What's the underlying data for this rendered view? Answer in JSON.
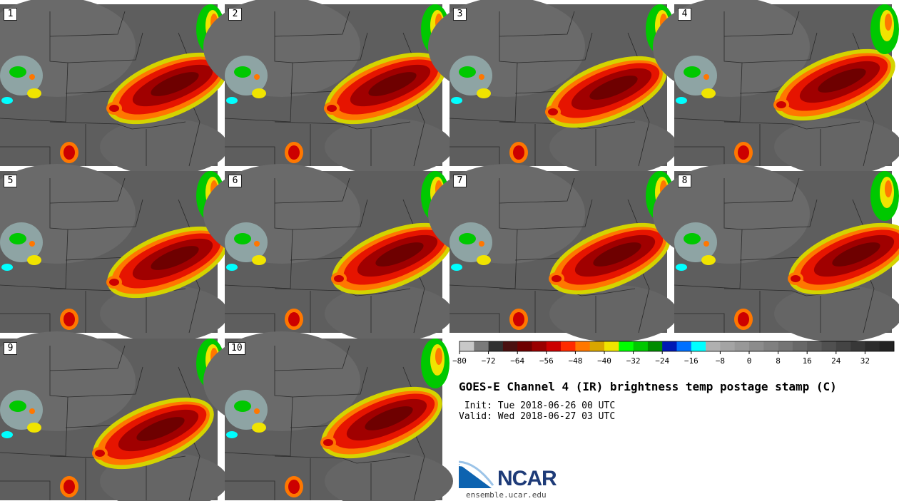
{
  "title": "GOES-E Channel 4 (IR) brightness temp postage stamp (C)",
  "init": " Init: Tue 2018-06-26 00 UTC",
  "valid": "Valid: Wed 2018-06-27 03 UTC",
  "logo": {
    "text": "NCAR",
    "site": "ensemble.ucar.edu"
  },
  "panels": [
    {
      "label": "1"
    },
    {
      "label": "2"
    },
    {
      "label": "3"
    },
    {
      "label": "4"
    },
    {
      "label": "5"
    },
    {
      "label": "6"
    },
    {
      "label": "7"
    },
    {
      "label": "8"
    },
    {
      "label": "9"
    },
    {
      "label": "10"
    }
  ],
  "colorbar": {
    "colors": [
      "#c8c8c8",
      "#7a7a7a",
      "#303030",
      "#4a1010",
      "#6e0000",
      "#9a0000",
      "#cc0000",
      "#ff2a00",
      "#ff7700",
      "#d9a600",
      "#f0e400",
      "#00ff00",
      "#00c800",
      "#008c00",
      "#0018b4",
      "#0070ff",
      "#00ffff",
      "#b0b0b0",
      "#a4a4a4",
      "#989898",
      "#8c8c8c",
      "#808080",
      "#747474",
      "#686868",
      "#5c5c5c",
      "#505050",
      "#444444",
      "#383838",
      "#2c2c2c",
      "#222222"
    ],
    "ticks": [
      "−80",
      "−72",
      "−64",
      "−56",
      "−48",
      "−40",
      "−32",
      "−24",
      "−16",
      "−8",
      "0",
      "8",
      "16",
      "24",
      "32"
    ]
  }
}
